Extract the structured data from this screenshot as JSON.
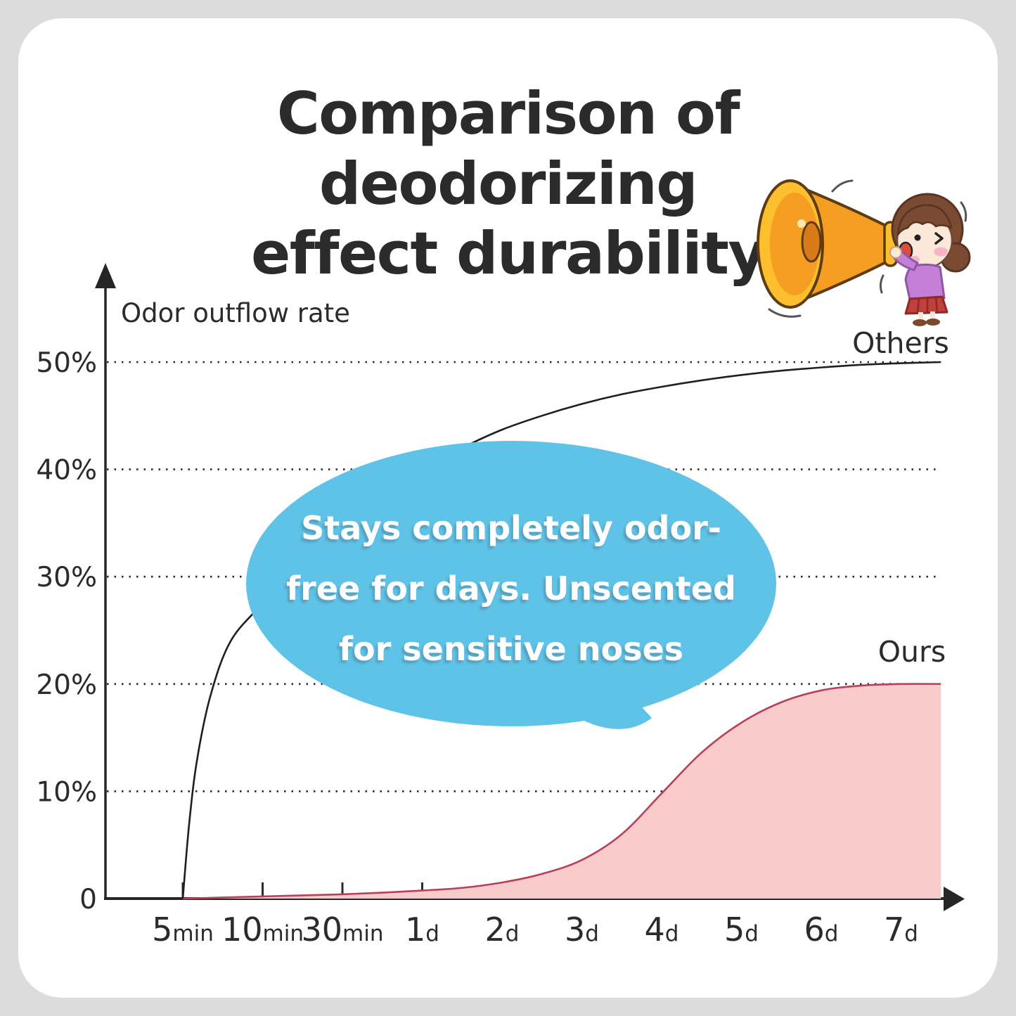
{
  "page": {
    "background_color": "#dcdcdc",
    "card_color": "#ffffff"
  },
  "title": {
    "text": "Comparison of deodorizing effect durability",
    "lines": [
      "Comparison of deodorizing",
      "effect durability"
    ]
  },
  "illustration": {
    "name": "megaphone-girl"
  },
  "chart_data": {
    "type": "area",
    "title": "Comparison of deodorizing effect durability",
    "ylabel": "Odor outflow rate",
    "xlabel": "",
    "ylim": [
      0,
      55
    ],
    "grid": "dotted-horizontal",
    "legend_position": "inline-labels-right",
    "y_ticks": [
      {
        "value": 0,
        "label": "0"
      },
      {
        "value": 10,
        "label": "10%"
      },
      {
        "value": 20,
        "label": "20%"
      },
      {
        "value": 30,
        "label": "30%"
      },
      {
        "value": 40,
        "label": "40%"
      },
      {
        "value": 50,
        "label": "50%"
      }
    ],
    "x_categories": [
      {
        "value": "5",
        "unit": "min"
      },
      {
        "value": "10",
        "unit": "min"
      },
      {
        "value": "30",
        "unit": "min"
      },
      {
        "value": "1",
        "unit": "d"
      },
      {
        "value": "2",
        "unit": "d"
      },
      {
        "value": "3",
        "unit": "d"
      },
      {
        "value": "4",
        "unit": "d"
      },
      {
        "value": "5",
        "unit": "d"
      },
      {
        "value": "6",
        "unit": "d"
      },
      {
        "value": "7",
        "unit": "d"
      }
    ],
    "series": [
      {
        "name": "Others",
        "type": "line",
        "color": "#1f1f1f",
        "values": [
          0,
          27.5,
          35,
          40,
          43.7,
          46.1,
          47.7,
          48.8,
          49.5,
          50
        ],
        "points": [
          [
            0,
            0
          ],
          [
            0.08,
            7
          ],
          [
            0.18,
            13
          ],
          [
            0.35,
            19
          ],
          [
            0.6,
            24
          ],
          [
            1,
            27.5
          ],
          [
            1.5,
            31.5
          ],
          [
            2,
            35
          ],
          [
            2.5,
            37.7
          ],
          [
            3,
            40
          ],
          [
            3.5,
            42
          ],
          [
            4,
            43.7
          ],
          [
            4.5,
            45
          ],
          [
            5,
            46.1
          ],
          [
            5.5,
            47
          ],
          [
            6,
            47.7
          ],
          [
            6.5,
            48.3
          ],
          [
            7,
            48.8
          ],
          [
            7.5,
            49.2
          ],
          [
            8,
            49.5
          ],
          [
            8.5,
            49.75
          ],
          [
            9,
            49.9
          ],
          [
            9.5,
            50
          ]
        ]
      },
      {
        "name": "Ours",
        "type": "area",
        "fill": "#f9cbcb",
        "stroke": "#b8405a",
        "values": [
          0,
          0.2,
          0.4,
          0.75,
          1.5,
          3.6,
          9.8,
          16.4,
          19.4,
          20
        ],
        "points": [
          [
            0,
            0
          ],
          [
            0.5,
            0.1
          ],
          [
            1,
            0.2
          ],
          [
            1.5,
            0.3
          ],
          [
            2,
            0.4
          ],
          [
            2.5,
            0.55
          ],
          [
            3,
            0.75
          ],
          [
            3.5,
            1.0
          ],
          [
            4,
            1.5
          ],
          [
            4.5,
            2.3
          ],
          [
            5,
            3.6
          ],
          [
            5.5,
            6
          ],
          [
            6,
            9.8
          ],
          [
            6.5,
            13.6
          ],
          [
            7,
            16.4
          ],
          [
            7.5,
            18.3
          ],
          [
            8,
            19.4
          ],
          [
            8.5,
            19.85
          ],
          [
            9,
            20
          ],
          [
            9.5,
            20
          ]
        ]
      }
    ],
    "annotation": {
      "text": "Stays completely odor-free for days. Unscented for sensitive noses",
      "lines": [
        "Stays completely odor-",
        "free for days. Unscented",
        "for sensitive noses"
      ],
      "bubble_color": "#5fc3e7",
      "text_color": "#ffffff"
    }
  }
}
